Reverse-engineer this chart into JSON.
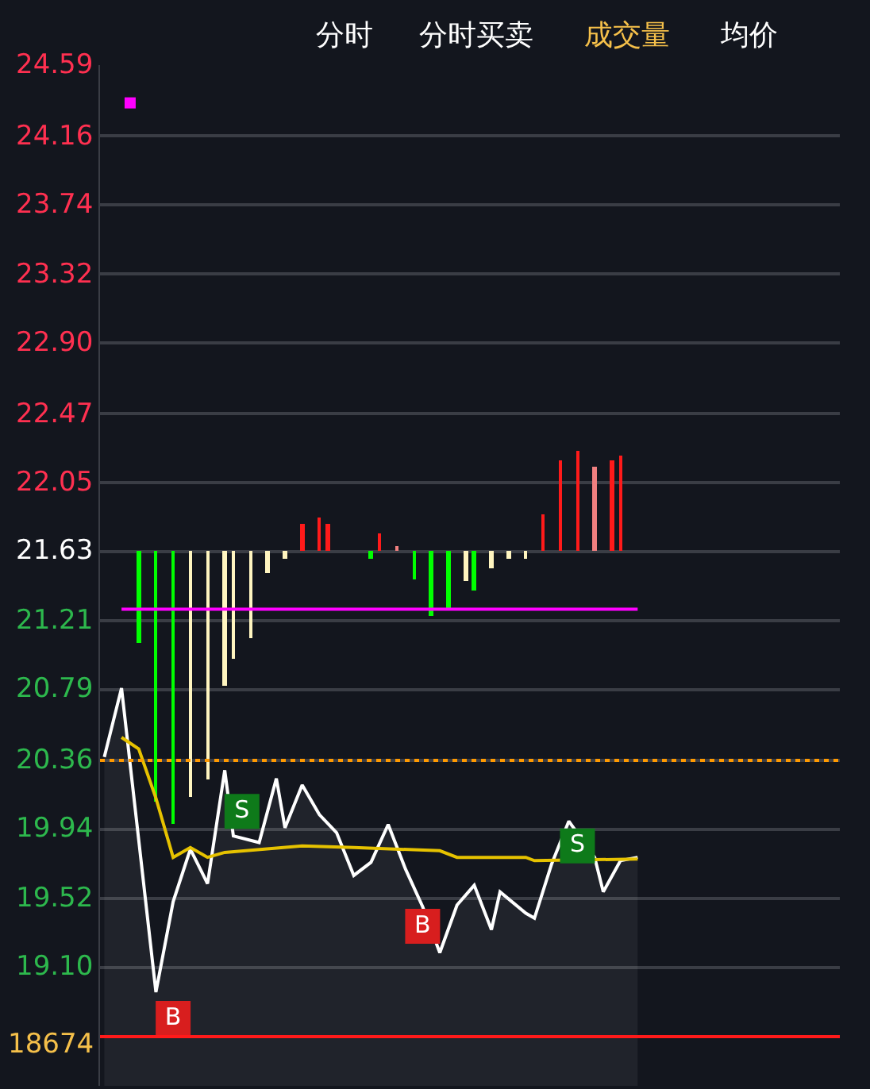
{
  "chart_data": {
    "type": "line",
    "annotations": [
      "分时",
      "分时买卖",
      "成交量",
      "均价",
      "18674"
    ],
    "categories": [
      null,
      null,
      null,
      null,
      null,
      null,
      null,
      null,
      null,
      null,
      null,
      null,
      null,
      null,
      null,
      null,
      null,
      null,
      null,
      null,
      null,
      null,
      null,
      null,
      null,
      null,
      null,
      null,
      null,
      null,
      null,
      null,
      null,
      null,
      null,
      null,
      null,
      null,
      null,
      null,
      null,
      null,
      null,
      null,
      null,
      null,
      null,
      null,
      null,
      null,
      null,
      null,
      null,
      null,
      null,
      null,
      null,
      null,
      null,
      null,
      null,
      null,
      null,
      null,
      null,
      null,
      null,
      null,
      null,
      null,
      null,
      null,
      null,
      null,
      null,
      null,
      null,
      null,
      null,
      null,
      null,
      null,
      null,
      null,
      null,
      null
    ],
    "ylim": [
      18.38,
      24.59
    ],
    "yticks": [
      {
        "value": 24.59,
        "label": "24.59"
      },
      {
        "value": 24.16,
        "label": "24.16"
      },
      {
        "value": 23.74,
        "label": "23.74"
      },
      {
        "value": 23.32,
        "label": "23.32"
      },
      {
        "value": 22.9,
        "label": "22.90"
      },
      {
        "value": 22.47,
        "label": "22.47"
      },
      {
        "value": 22.05,
        "label": "22.05"
      },
      {
        "value": 21.63,
        "label": "21.63"
      },
      {
        "value": 21.21,
        "label": "21.21"
      },
      {
        "value": 20.79,
        "label": "20.79"
      },
      {
        "value": 20.36,
        "label": "20.36"
      },
      {
        "value": 19.94,
        "label": "19.94"
      },
      {
        "value": 19.52,
        "label": "19.52"
      },
      {
        "value": 19.1,
        "label": "19.10"
      }
    ],
    "tick_labels": "y",
    "grid": "y",
    "ref_lines": [
      {
        "axis": "y",
        "value": 20.36,
        "color": "#ff9900",
        "line_style": "dotted"
      },
      {
        "axis": "y",
        "value": 18.68,
        "color": "#ff1a1a"
      }
    ],
    "series": [
      {
        "type": "bar",
        "values": [
          null,
          null,
          null,
          null,
          -0.56,
          null,
          -1.52,
          null,
          -1.66,
          null,
          -1.49,
          null,
          -1.39,
          null,
          -0.82,
          -0.65,
          null,
          -0.53,
          null,
          -0.13,
          null,
          -0.04,
          null,
          0.17,
          null,
          0.21,
          0.17,
          null,
          null,
          null,
          null,
          -0.04,
          0.11,
          null,
          0.03,
          null,
          -0.17,
          null,
          -0.39,
          null,
          -0.35,
          null,
          -0.18,
          -0.24,
          null,
          -0.1,
          null,
          -0.04,
          null,
          -0.04,
          null,
          0.23,
          null,
          0.56,
          null,
          0.61,
          null,
          0.52,
          null,
          0.56,
          0.58,
          null,
          null,
          null,
          null,
          null,
          null,
          null,
          null,
          null,
          null,
          null,
          null,
          null,
          null,
          null,
          null,
          null,
          null,
          null,
          null,
          null,
          null,
          null,
          null,
          null
        ],
        "base": [
          null,
          null,
          null,
          null,
          21.63,
          null,
          21.63,
          null,
          21.63,
          null,
          21.63,
          null,
          21.63,
          null,
          21.63,
          21.63,
          null,
          21.63,
          null,
          21.63,
          null,
          21.63,
          null,
          21.63,
          null,
          21.63,
          21.63,
          null,
          null,
          null,
          null,
          21.63,
          21.63,
          null,
          21.63,
          null,
          21.63,
          null,
          21.63,
          null,
          21.63,
          null,
          21.63,
          21.63,
          null,
          21.63,
          null,
          21.63,
          null,
          21.63,
          null,
          21.63,
          null,
          21.63,
          null,
          21.63,
          null,
          21.63,
          null,
          21.63,
          21.63,
          null,
          null,
          null,
          null,
          null,
          null,
          null,
          null,
          null,
          null,
          null,
          null,
          null,
          null,
          null,
          null,
          null,
          null,
          null,
          null,
          null,
          null,
          null,
          null,
          null
        ],
        "colors": [
          null,
          null,
          null,
          null,
          "#00ff00",
          null,
          "#00ff00",
          null,
          "#00ff00",
          null,
          "#fff5c0",
          null,
          "#fff5c0",
          null,
          "#fff5c0",
          "#fff5c0",
          null,
          "#fff5c0",
          null,
          "#fff5c0",
          null,
          "#fff5c0",
          null,
          "#ff1a1a",
          null,
          "#ff1a1a",
          "#ff1a1a",
          null,
          null,
          null,
          null,
          "#00ff00",
          "#ff1a1a",
          null,
          "#f08080",
          null,
          "#00ff00",
          null,
          "#00ff00",
          null,
          "#00ff00",
          null,
          "#fff5c0",
          "#00ff00",
          null,
          "#fff5c0",
          null,
          "#fff5c0",
          null,
          "#fff5c0",
          null,
          "#ff1a1a",
          null,
          "#ff1a1a",
          null,
          "#ff1a1a",
          null,
          "#f08080",
          null,
          "#ff1a1a",
          "#ff1a1a",
          null,
          null,
          null,
          null,
          null,
          null,
          null,
          null,
          null,
          null,
          null,
          null,
          null,
          null,
          null,
          null,
          null,
          null,
          null,
          null,
          null,
          null,
          null,
          null,
          null
        ]
      },
      {
        "type": "area",
        "color": "#ffffff",
        "values": [
          20.38,
          null,
          20.8,
          null,
          null,
          null,
          18.95,
          null,
          19.5,
          null,
          19.82,
          null,
          19.61,
          null,
          20.3,
          19.9,
          null,
          null,
          19.86,
          null,
          20.25,
          19.95,
          null,
          20.21,
          null,
          20.03,
          null,
          19.92,
          null,
          19.66,
          null,
          19.74,
          null,
          19.97,
          null,
          19.7,
          null,
          19.47,
          null,
          19.19,
          null,
          19.48,
          null,
          19.6,
          null,
          19.33,
          19.56,
          null,
          null,
          19.43,
          19.4,
          null,
          19.73,
          null,
          19.99,
          null,
          null,
          19.77,
          19.56,
          null,
          19.75,
          null,
          19.77,
          null,
          null,
          null,
          null,
          null,
          null,
          null,
          null,
          null,
          null,
          null,
          null,
          null,
          null,
          null,
          null,
          null,
          null,
          null,
          null,
          null,
          null,
          null
        ]
      },
      {
        "color": "#e6c200",
        "values": [
          null,
          null,
          20.5,
          null,
          20.43,
          null,
          20.13,
          null,
          19.77,
          null,
          19.83,
          null,
          19.77,
          null,
          19.8,
          null,
          null,
          null,
          null,
          null,
          null,
          null,
          null,
          19.84,
          null,
          null,
          null,
          null,
          null,
          19.83,
          null,
          null,
          null,
          null,
          null,
          null,
          null,
          null,
          null,
          19.81,
          null,
          19.77,
          null,
          null,
          null,
          null,
          null,
          null,
          null,
          19.77,
          19.75,
          null,
          null,
          null,
          null,
          null,
          null,
          null,
          null,
          null,
          null,
          null,
          19.76,
          null,
          null,
          null,
          null,
          null,
          null,
          null,
          null,
          null,
          null,
          null,
          null,
          null,
          null,
          null,
          null,
          null,
          null,
          null,
          null,
          null,
          null,
          null
        ]
      },
      {
        "color": "#ff00ff",
        "values": [
          null,
          null,
          21.28,
          null,
          null,
          null,
          null,
          null,
          null,
          null,
          null,
          null,
          null,
          null,
          null,
          null,
          null,
          null,
          null,
          null,
          null,
          null,
          null,
          null,
          null,
          null,
          null,
          null,
          null,
          null,
          null,
          null,
          null,
          null,
          null,
          null,
          null,
          null,
          null,
          null,
          null,
          null,
          null,
          null,
          null,
          null,
          null,
          null,
          null,
          null,
          null,
          null,
          null,
          null,
          null,
          null,
          null,
          null,
          null,
          null,
          null,
          null,
          21.28,
          null,
          null,
          null,
          null,
          null,
          null,
          null,
          null,
          null,
          null,
          null,
          null,
          null,
          null,
          null,
          null,
          null,
          null,
          null,
          null,
          null,
          null,
          null
        ]
      },
      {
        "type": "scatter",
        "color": "#ff00ff",
        "marker": "square",
        "values": [
          null,
          null,
          null,
          24.36,
          null,
          null,
          null,
          null,
          null,
          null,
          null,
          null,
          null,
          null,
          null,
          null,
          null,
          null,
          null,
          null,
          null,
          null,
          null,
          null,
          null,
          null,
          null,
          null,
          null,
          null,
          null,
          null,
          null,
          null,
          null,
          null,
          null,
          null,
          null,
          null,
          null,
          null,
          null,
          null,
          null,
          null,
          null,
          null,
          null,
          null,
          null,
          null,
          null,
          null,
          null,
          null,
          null,
          null,
          null,
          null,
          null,
          null,
          null,
          null,
          null,
          null,
          null,
          null,
          null,
          null,
          null,
          null,
          null,
          null,
          null,
          null,
          null,
          null,
          null,
          null,
          null,
          null,
          null,
          null,
          null,
          null
        ]
      },
      {
        "type": "scatter",
        "marker": "square",
        "values": [
          null,
          null,
          null,
          null,
          null,
          null,
          null,
          null,
          18.79,
          null,
          null,
          null,
          null,
          null,
          null,
          null,
          20.05,
          null,
          null,
          null,
          null,
          null,
          null,
          null,
          null,
          null,
          null,
          null,
          null,
          null,
          null,
          null,
          null,
          null,
          null,
          null,
          null,
          19.35,
          null,
          null,
          null,
          null,
          null,
          null,
          null,
          null,
          null,
          null,
          null,
          null,
          null,
          null,
          null,
          null,
          null,
          19.84,
          null,
          null,
          null,
          null,
          null,
          null,
          null,
          null,
          null,
          null,
          null,
          null,
          null,
          null,
          null,
          null,
          null,
          null,
          null,
          null,
          null,
          null,
          null,
          null,
          null,
          null,
          null,
          null,
          null,
          null
        ],
        "value_labels": [
          null,
          null,
          null,
          null,
          null,
          null,
          null,
          null,
          "B",
          null,
          null,
          null,
          null,
          null,
          null,
          null,
          "S",
          null,
          null,
          null,
          null,
          null,
          null,
          null,
          null,
          null,
          null,
          null,
          null,
          null,
          null,
          null,
          null,
          null,
          null,
          null,
          null,
          "B",
          null,
          null,
          null,
          null,
          null,
          null,
          null,
          null,
          null,
          null,
          null,
          null,
          null,
          null,
          null,
          null,
          null,
          "S",
          null,
          null,
          null,
          null,
          null,
          null,
          null,
          null,
          null,
          null,
          null,
          null,
          null,
          null,
          null,
          null,
          null,
          null,
          null,
          null,
          null,
          null,
          null,
          null,
          null,
          null,
          null,
          null,
          null,
          null
        ],
        "colors": [
          null,
          null,
          null,
          null,
          null,
          null,
          null,
          null,
          "#d81e1e",
          null,
          null,
          null,
          null,
          null,
          null,
          null,
          "#0e7a1a",
          null,
          null,
          null,
          null,
          null,
          null,
          null,
          null,
          null,
          null,
          null,
          null,
          null,
          null,
          null,
          null,
          null,
          null,
          null,
          null,
          "#d81e1e",
          null,
          null,
          null,
          null,
          null,
          null,
          null,
          null,
          null,
          null,
          null,
          null,
          null,
          null,
          null,
          null,
          null,
          "#0e7a1a",
          null,
          null,
          null,
          null,
          null,
          null,
          null,
          null,
          null,
          null,
          null,
          null,
          null,
          null,
          null,
          null,
          null,
          null,
          null,
          null,
          null,
          null,
          null,
          null,
          null,
          null,
          null,
          null,
          null,
          null
        ]
      }
    ]
  }
}
